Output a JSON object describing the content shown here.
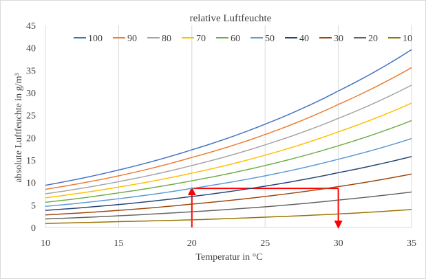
{
  "chart_data": {
    "type": "line",
    "title": "relative Luftfeuchte",
    "xlabel": "Temperatur in °C",
    "ylabel": "absolute Luftfeuchte in g/m³",
    "xlim": [
      10,
      35
    ],
    "ylim": [
      0,
      45
    ],
    "x_ticks": [
      10,
      15,
      20,
      25,
      30,
      35
    ],
    "y_ticks": [
      0,
      5,
      10,
      15,
      20,
      25,
      30,
      35,
      40,
      45
    ],
    "grid": "vertical",
    "legend_position": "top",
    "x": [
      10,
      15,
      20,
      25,
      30,
      35
    ],
    "series": [
      {
        "name": "100",
        "color": "#4472c4",
        "values": [
          9.4,
          12.8,
          17.3,
          23.0,
          30.4,
          39.6
        ]
      },
      {
        "name": "90",
        "color": "#ed7d31",
        "values": [
          8.5,
          11.5,
          15.6,
          20.7,
          27.4,
          35.6
        ]
      },
      {
        "name": "80",
        "color": "#a5a5a5",
        "values": [
          7.5,
          10.2,
          13.8,
          18.4,
          24.3,
          31.7
        ]
      },
      {
        "name": "70",
        "color": "#ffc000",
        "values": [
          6.6,
          9.0,
          12.1,
          16.1,
          21.3,
          27.7
        ]
      },
      {
        "name": "60",
        "color": "#70ad47",
        "values": [
          5.6,
          7.7,
          10.4,
          13.8,
          18.2,
          23.8
        ]
      },
      {
        "name": "50",
        "color": "#5b9bd5",
        "values": [
          4.7,
          6.4,
          8.7,
          11.5,
          15.2,
          19.8
        ]
      },
      {
        "name": "40",
        "color": "#264478",
        "values": [
          3.8,
          5.1,
          6.9,
          9.2,
          12.2,
          15.8
        ]
      },
      {
        "name": "30",
        "color": "#9e480e",
        "values": [
          2.8,
          3.8,
          5.2,
          6.9,
          9.1,
          11.9
        ]
      },
      {
        "name": "20",
        "color": "#636363",
        "values": [
          1.9,
          2.6,
          3.5,
          4.6,
          6.1,
          7.9
        ]
      },
      {
        "name": "10",
        "color": "#997300",
        "values": [
          0.9,
          1.3,
          1.7,
          2.3,
          3.0,
          4.0
        ]
      }
    ],
    "annotation": {
      "color": "#ff0000",
      "path": [
        [
          20,
          0
        ],
        [
          20,
          8.7
        ],
        [
          30,
          8.7
        ],
        [
          30,
          0
        ]
      ]
    }
  }
}
